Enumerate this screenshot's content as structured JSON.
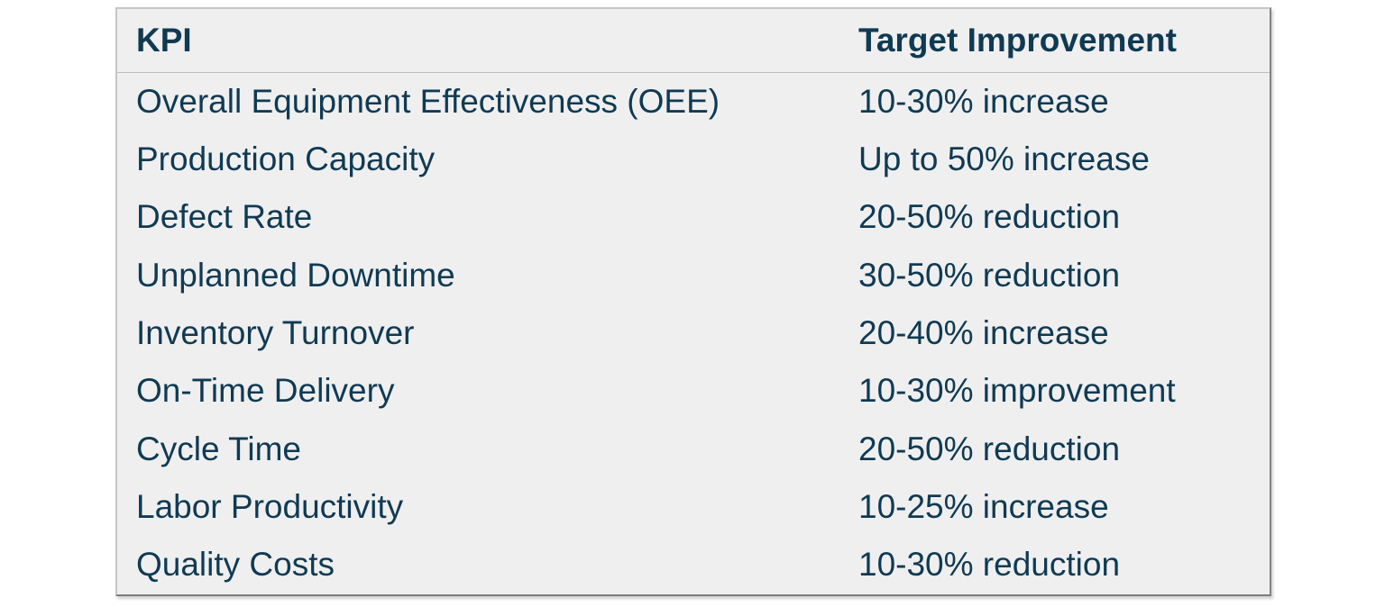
{
  "table": {
    "columns": [
      {
        "label": "KPI"
      },
      {
        "label": "Target Improvement"
      }
    ],
    "rows": [
      {
        "kpi": "Overall Equipment Effectiveness (OEE)",
        "target": "10-30% increase"
      },
      {
        "kpi": "Production Capacity",
        "target": "Up to 50% increase"
      },
      {
        "kpi": "Defect Rate",
        "target": "20-50% reduction"
      },
      {
        "kpi": "Unplanned Downtime",
        "target": "30-50% reduction"
      },
      {
        "kpi": "Inventory Turnover",
        "target": "20-40% increase"
      },
      {
        "kpi": "On-Time Delivery",
        "target": "10-30% improvement"
      },
      {
        "kpi": "Cycle Time",
        "target": "20-50% reduction"
      },
      {
        "kpi": "Labor Productivity",
        "target": "10-25% increase"
      },
      {
        "kpi": "Quality Costs",
        "target": "10-30% reduction"
      }
    ]
  },
  "colors": {
    "text": "#103a52",
    "table_background": "#efeff0",
    "outer_border": "#828282",
    "header_divider": "#bdbdbd",
    "page_background": "#ffffff"
  },
  "chart_data": {
    "type": "table",
    "title": "",
    "columns": [
      "KPI",
      "Target Improvement"
    ],
    "rows": [
      [
        "Overall Equipment Effectiveness (OEE)",
        "10-30% increase"
      ],
      [
        "Production Capacity",
        "Up to 50% increase"
      ],
      [
        "Defect Rate",
        "20-50% reduction"
      ],
      [
        "Unplanned Downtime",
        "30-50% reduction"
      ],
      [
        "Inventory Turnover",
        "20-40% increase"
      ],
      [
        "On-Time Delivery",
        "10-30% improvement"
      ],
      [
        "Cycle Time",
        "20-50% reduction"
      ],
      [
        "Labor Productivity",
        "10-25% increase"
      ],
      [
        "Quality Costs",
        "10-30% reduction"
      ]
    ]
  }
}
